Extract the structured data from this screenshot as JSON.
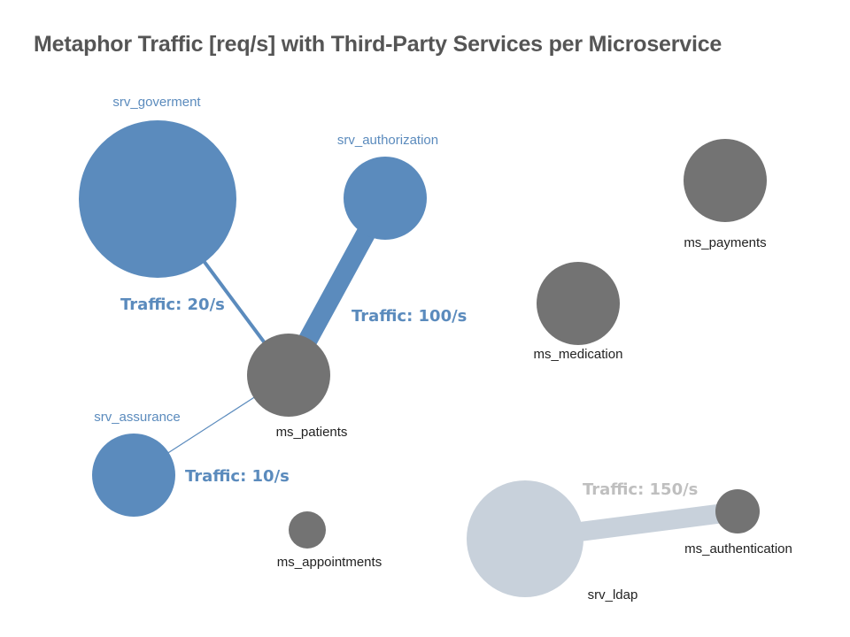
{
  "title": "Metaphor Traffic [req/s] with Third-Party Services per Microservice",
  "colors": {
    "third_party": "#5b8bbd",
    "microservice": "#737373",
    "inactive": "#c8d1db",
    "inactive_label": "#bfbfbf",
    "title": "#555555",
    "label_dark": "#222222"
  },
  "nodes": {
    "srv_goverment": {
      "label": "srv_goverment",
      "kind": "third-party"
    },
    "srv_authorization": {
      "label": "srv_authorization",
      "kind": "third-party"
    },
    "srv_assurance": {
      "label": "srv_assurance",
      "kind": "third-party"
    },
    "srv_ldap": {
      "label": "srv_ldap",
      "kind": "third-party-inactive"
    },
    "ms_patients": {
      "label": "ms_patients",
      "kind": "microservice"
    },
    "ms_payments": {
      "label": "ms_payments",
      "kind": "microservice"
    },
    "ms_medication": {
      "label": "ms_medication",
      "kind": "microservice"
    },
    "ms_appointments": {
      "label": "ms_appointments",
      "kind": "microservice"
    },
    "ms_authentication": {
      "label": "ms_authentication",
      "kind": "microservice"
    }
  },
  "edges": {
    "goverment_patients": {
      "from": "srv_goverment",
      "to": "ms_patients",
      "traffic": 20,
      "label": "Traffic: 20/s"
    },
    "authorization_patients": {
      "from": "srv_authorization",
      "to": "ms_patients",
      "traffic": 100,
      "label": "Traffic: 100/s"
    },
    "assurance_patients": {
      "from": "srv_assurance",
      "to": "ms_patients",
      "traffic": 10,
      "label": "Traffic: 10/s"
    },
    "ldap_authentication": {
      "from": "srv_ldap",
      "to": "ms_authentication",
      "traffic": 150,
      "label": "Traffic: 150/s"
    }
  }
}
